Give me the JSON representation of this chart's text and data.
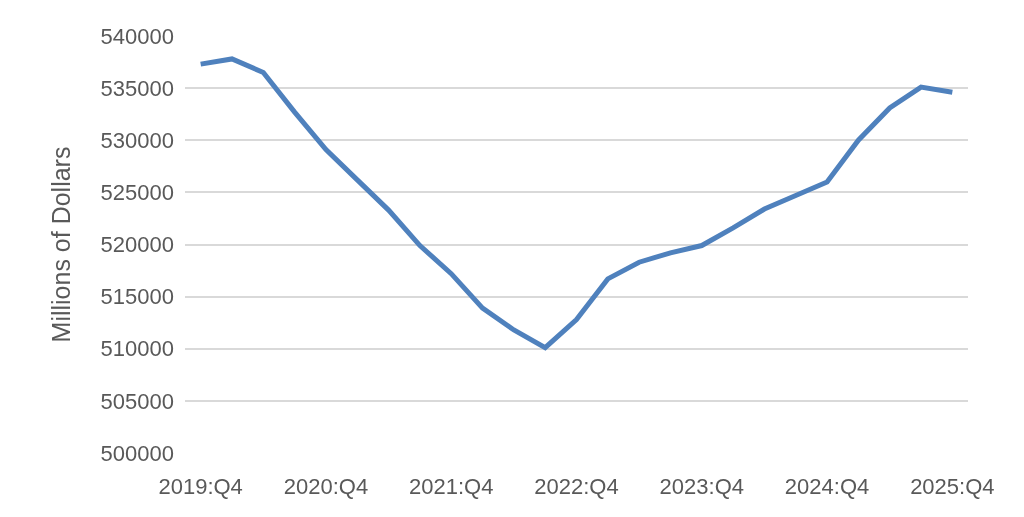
{
  "chart_data": {
    "type": "line",
    "ylabel": "Millions of Dollars",
    "categories": [
      "2019:Q4",
      null,
      null,
      null,
      "2020:Q4",
      null,
      null,
      null,
      "2021:Q4",
      null,
      null,
      null,
      "2022:Q4",
      null,
      null,
      null,
      "2023:Q4",
      null,
      null,
      null,
      "2024:Q4",
      null,
      null,
      null,
      "2025:Q4"
    ],
    "series": [
      {
        "color": "#4f81bd",
        "values": [
          537300,
          537800,
          536500,
          532700,
          529100,
          526200,
          523300,
          519900,
          517200,
          513900,
          511800,
          510100,
          512800,
          516700,
          518300,
          519200,
          519900,
          521600,
          523400,
          524700,
          526000,
          530000,
          533100,
          535100,
          534600
        ]
      }
    ],
    "ylim": [
      500000,
      540000
    ],
    "yticks": [
      500000,
      505000,
      510000,
      515000,
      520000,
      525000,
      530000,
      535000,
      540000
    ],
    "grid": "y"
  }
}
